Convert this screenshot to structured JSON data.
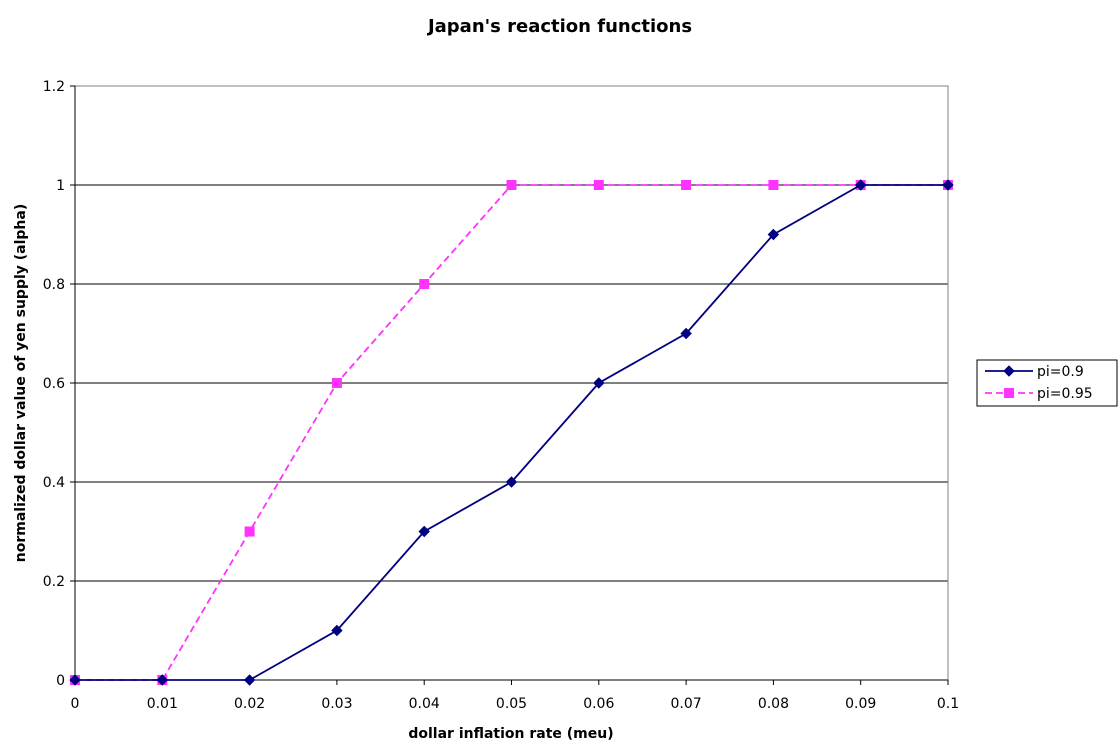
{
  "chart_data": {
    "type": "line",
    "title": "Japan's reaction functions",
    "xlabel": "dollar inflation rate (meu)",
    "ylabel": "normalized dollar value of yen supply (alpha)",
    "x": [
      0,
      0.01,
      0.02,
      0.03,
      0.04,
      0.05,
      0.06,
      0.07,
      0.08,
      0.09,
      0.1
    ],
    "xticks": [
      "0",
      "0.01",
      "0.02",
      "0.03",
      "0.04",
      "0.05",
      "0.06",
      "0.07",
      "0.08",
      "0.09",
      "0.1"
    ],
    "yticks": [
      "0",
      "0.2",
      "0.4",
      "0.6",
      "0.8",
      "1",
      "1.2"
    ],
    "xlim": [
      0,
      0.1
    ],
    "ylim": [
      0,
      1.2
    ],
    "grid": "horizontal",
    "legend": "right",
    "series": [
      {
        "name": "pi=0.9",
        "values": [
          0,
          0,
          0,
          0.1,
          0.3,
          0.4,
          0.6,
          0.7,
          0.9,
          1,
          1
        ],
        "color": "#000080",
        "marker": "diamond",
        "line_style": "solid"
      },
      {
        "name": "pi=0.95",
        "values": [
          0,
          0,
          0.3,
          0.6,
          0.8,
          1,
          1,
          1,
          1,
          1,
          1
        ],
        "color": "#FF33FF",
        "marker": "square",
        "line_style": "dashed"
      }
    ]
  }
}
